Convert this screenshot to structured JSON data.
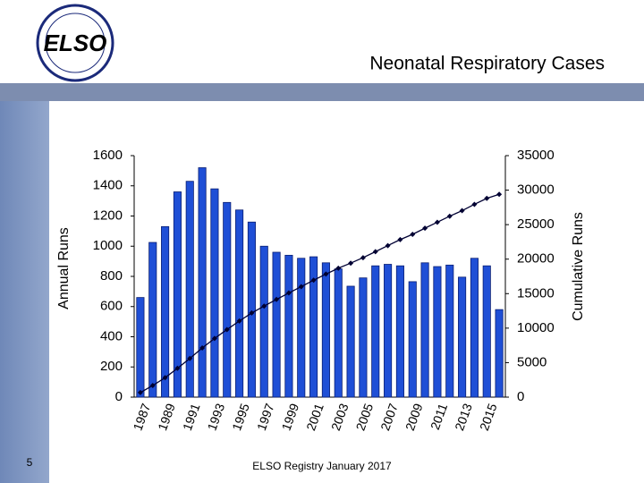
{
  "logo": "ELSO",
  "slide_number": "5",
  "footer": "ELSO Registry January 2017",
  "chart_data": {
    "type": "bar_line",
    "title": "Neonatal Respiratory Cases",
    "y_label": "Annual Runs",
    "y2_label": "Cumulative Runs",
    "categories": [
      "1987",
      null,
      "1989",
      null,
      "1991",
      null,
      "1993",
      null,
      "1995",
      null,
      "1997",
      null,
      "1999",
      null,
      "2001",
      null,
      "2003",
      null,
      "2005",
      null,
      "2007",
      null,
      "2009",
      null,
      "2011",
      null,
      "2013",
      null,
      "2015",
      null
    ],
    "series": [
      {
        "name": "Annual Runs",
        "type": "bar",
        "color": "#1f4fd6",
        "values": [
          660,
          1025,
          1130,
          1360,
          1430,
          1520,
          1380,
          1290,
          1240,
          1160,
          1000,
          960,
          940,
          920,
          930,
          890,
          850,
          735,
          790,
          870,
          880,
          870,
          765,
          890,
          865,
          875,
          795,
          920,
          870,
          580
        ]
      },
      {
        "name": "Cumulative Runs",
        "type": "line",
        "axis": "y2",
        "color": "#000033",
        "values": [
          660,
          1685,
          2815,
          4175,
          5605,
          7125,
          8505,
          9795,
          11035,
          12195,
          13195,
          14155,
          15095,
          16015,
          16945,
          17835,
          18685,
          19420,
          20210,
          21080,
          21960,
          22830,
          23595,
          24485,
          25350,
          26225,
          27020,
          27940,
          28810,
          29390
        ]
      }
    ],
    "ylim": [
      0,
      1600
    ],
    "yticks": [
      0,
      200,
      400,
      600,
      800,
      1000,
      1200,
      1400,
      1600
    ],
    "y2lim": [
      0,
      35000
    ],
    "y2ticks": [
      0,
      5000,
      10000,
      15000,
      20000,
      25000,
      30000,
      35000
    ]
  }
}
